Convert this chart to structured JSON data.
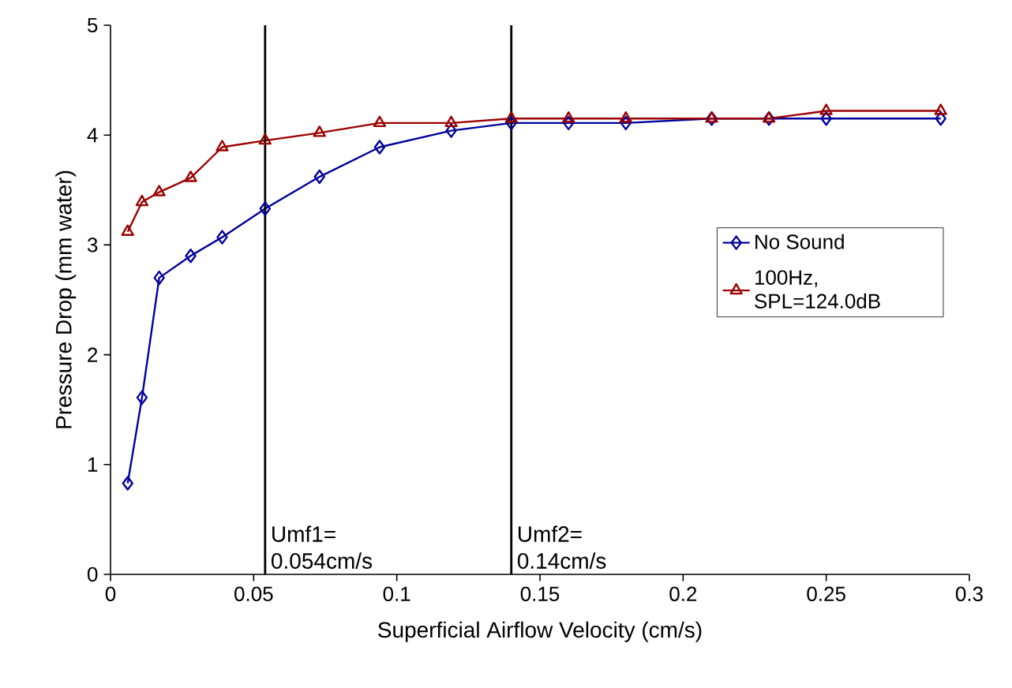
{
  "chart_data": {
    "type": "line",
    "xlabel": "Superficial Airflow Velocity (cm/s)",
    "ylabel": "Pressure Drop (mm water)",
    "xlim": [
      0,
      0.3
    ],
    "ylim": [
      0,
      5
    ],
    "xticks": [
      0,
      0.05,
      0.1,
      0.15,
      0.2,
      0.25,
      0.3
    ],
    "yticks": [
      0,
      1,
      2,
      3,
      4,
      5
    ],
    "grid": false,
    "legend": "right",
    "series": [
      {
        "name": "No Sound",
        "color": "#00009c",
        "marker": "diamond",
        "x": [
          0.006,
          0.011,
          0.017,
          0.028,
          0.039,
          0.054,
          0.073,
          0.094,
          0.119,
          0.14,
          0.16,
          0.18,
          0.21,
          0.23,
          0.25,
          0.29
        ],
        "values": [
          0.83,
          1.61,
          2.7,
          2.9,
          3.07,
          3.33,
          3.62,
          3.89,
          4.04,
          4.11,
          4.11,
          4.11,
          4.15,
          4.15,
          4.15,
          4.15
        ]
      },
      {
        "name": "100Hz, SPL=124.0dB",
        "color": "#9c0000",
        "marker": "triangle",
        "x": [
          0.006,
          0.011,
          0.017,
          0.028,
          0.039,
          0.054,
          0.073,
          0.094,
          0.119,
          0.14,
          0.16,
          0.18,
          0.21,
          0.23,
          0.25,
          0.29
        ],
        "values": [
          3.12,
          3.39,
          3.48,
          3.61,
          3.89,
          3.95,
          4.02,
          4.11,
          4.11,
          4.15,
          4.15,
          4.15,
          4.15,
          4.15,
          4.22,
          4.22
        ]
      }
    ],
    "ref_lines": [
      {
        "axis": "x",
        "value": 0.054,
        "label": "Umf1= 0.054cm/s",
        "color": "#000000"
      },
      {
        "axis": "x",
        "value": 0.14,
        "label": "Umf2= 0.14cm/s",
        "color": "#000000"
      }
    ]
  }
}
